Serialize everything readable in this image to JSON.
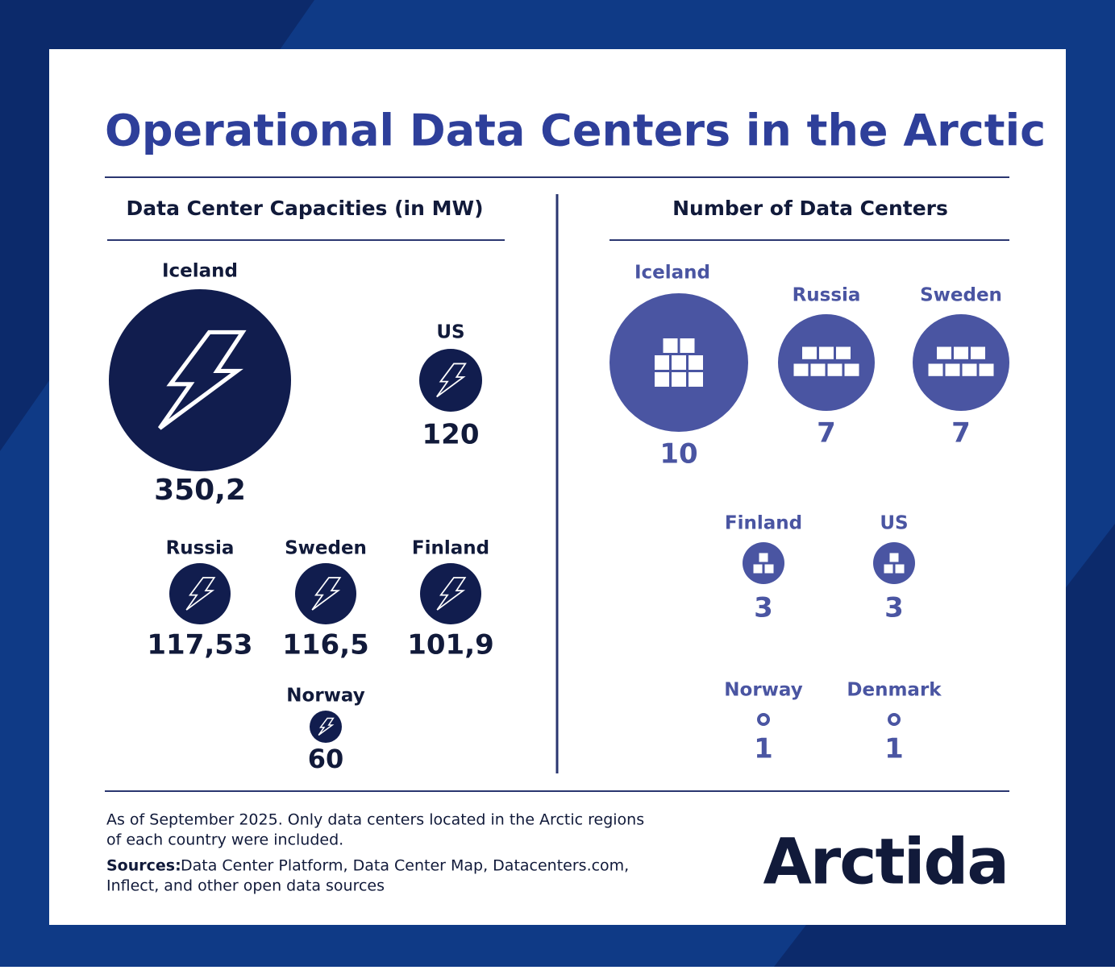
{
  "title": "Operational Data Centers in the Arctic",
  "capacity": {
    "heading": "Data Center Capacities (in MW)",
    "items": [
      {
        "country": "Iceland",
        "value": "350,2"
      },
      {
        "country": "US",
        "value": "120"
      },
      {
        "country": "Russia",
        "value": "117,53"
      },
      {
        "country": "Sweden",
        "value": "116,5"
      },
      {
        "country": "Finland",
        "value": "101,9"
      },
      {
        "country": "Norway",
        "value": "60"
      }
    ]
  },
  "count": {
    "heading": "Number of Data Centers",
    "items": [
      {
        "country": "Iceland",
        "value": "10"
      },
      {
        "country": "Russia",
        "value": "7"
      },
      {
        "country": "Sweden",
        "value": "7"
      },
      {
        "country": "Finland",
        "value": "3"
      },
      {
        "country": "US",
        "value": "3"
      },
      {
        "country": "Norway",
        "value": "1"
      },
      {
        "country": "Denmark",
        "value": "1"
      }
    ]
  },
  "footer": {
    "note_line1": "As of September 2025. Only data centers located in the Arctic regions",
    "note_line2": "of each country were included.",
    "sources_label": "Sources:",
    "sources_line1": "Data Center Platform, Data Center Map, Datacenters.com,",
    "sources_line2": "Inflect, and other open data sources"
  },
  "logo": "Arctida"
}
